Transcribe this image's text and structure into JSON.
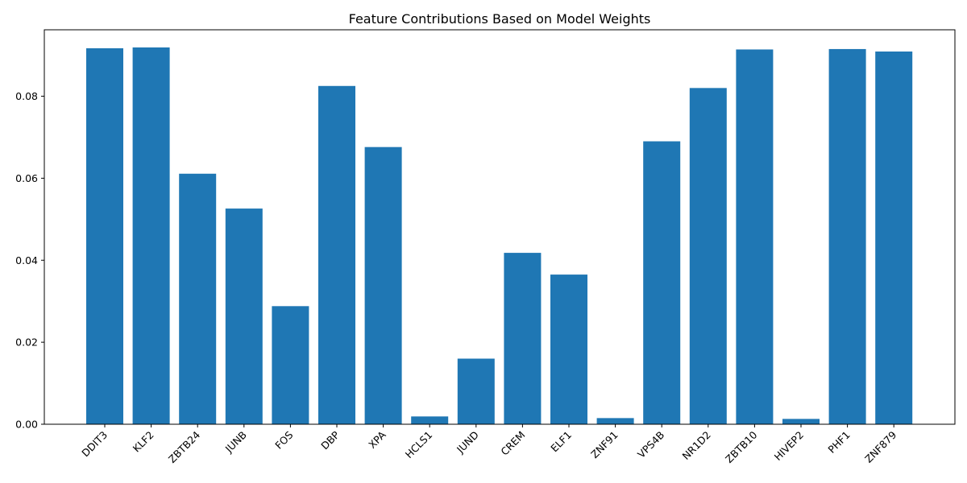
{
  "chart_data": {
    "type": "bar",
    "title": "Feature Contributions Based on Model Weights",
    "xlabel": "",
    "ylabel": "",
    "categories": [
      "DDIT3",
      "KLF2",
      "ZBTB24",
      "JUNB",
      "FOS",
      "DBP",
      "XPA",
      "HCLS1",
      "JUND",
      "CREM",
      "ELF1",
      "ZNF91",
      "VPS4B",
      "NR1D2",
      "ZBTB10",
      "HIVEP2",
      "PHF1",
      "ZNF879"
    ],
    "values": [
      0.0917,
      0.0919,
      0.0611,
      0.0526,
      0.0288,
      0.0825,
      0.0676,
      0.0019,
      0.016,
      0.0418,
      0.0365,
      0.0015,
      0.069,
      0.082,
      0.0914,
      0.0013,
      0.0915,
      0.0909
    ],
    "ylim": [
      0,
      0.0962
    ],
    "yticks": [
      0.0,
      0.02,
      0.04,
      0.06,
      0.08
    ],
    "ytick_labels": [
      "0.00",
      "0.02",
      "0.04",
      "0.06",
      "0.08"
    ],
    "bar_color": "#1f77b4",
    "grid": false,
    "legend": "none"
  }
}
